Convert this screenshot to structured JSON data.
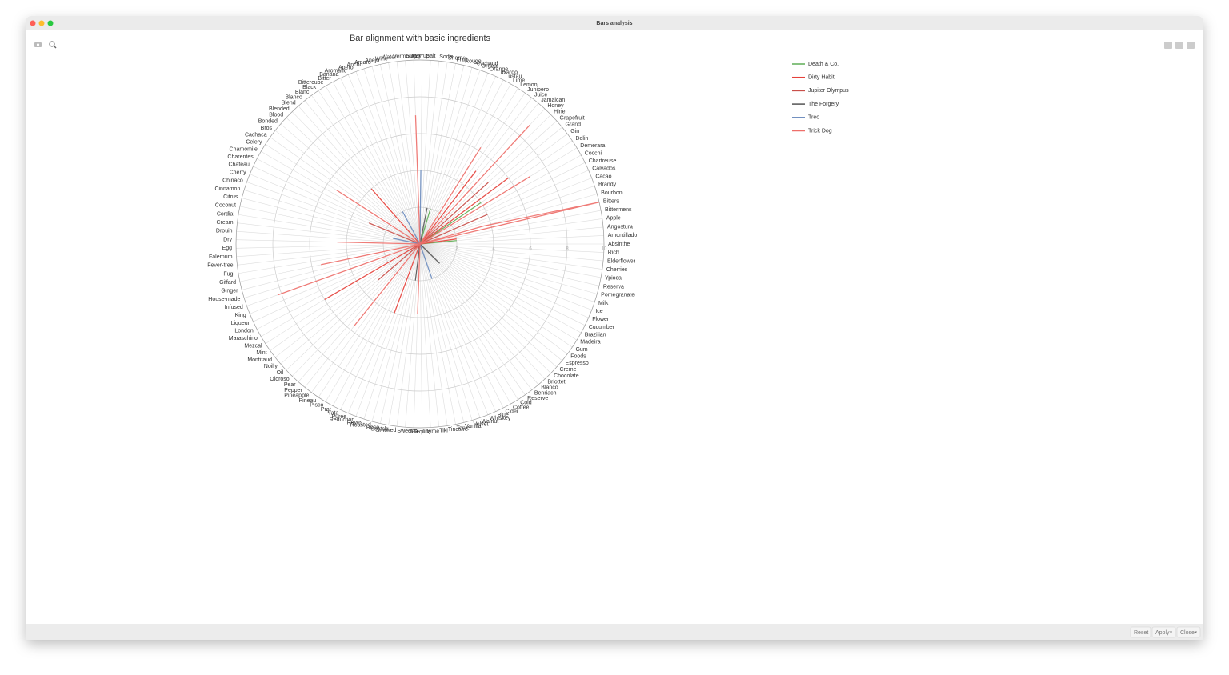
{
  "window": {
    "title": "Bars analysis",
    "buttons": [
      "Reset",
      "Apply",
      "Close"
    ]
  },
  "chart_data": {
    "type": "polar_line",
    "title": "Bar alignment with basic ingredients",
    "categories": [
      "Absinthe",
      "Amontillado",
      "Angostura",
      "Apple",
      "Bittermens",
      "Bitters",
      "Bourbon",
      "Brandy",
      "Cacao",
      "Calvados",
      "Chartreuse",
      "Cocchi",
      "Demerara",
      "Dolin",
      "Gin",
      "Grand",
      "Grapefruit",
      "Hine",
      "Honey",
      "Jamaican",
      "Juice",
      "Junipero",
      "Lemon",
      "Lime",
      "Lustau",
      "Luxardo",
      "Orange",
      "Orgeat",
      "Peychaud",
      "Rouge",
      "Fruit",
      "Sherry",
      "Soda",
      "Salt",
      "Syrup",
      "Sugar",
      "Vermouth",
      "Water",
      "Wine",
      "Anejo",
      "Amaro",
      "Ancho",
      "Aperol",
      "Aromatic",
      "Banana",
      "Bitter",
      "Bittercube",
      "Black",
      "Blanc",
      "Blanco",
      "Blend",
      "Blended",
      "Blood",
      "Bonded",
      "Bros",
      "Cachaca",
      "Celery",
      "Chamomile",
      "Charentes",
      "Chateau",
      "Cherry",
      "Chinaco",
      "Cinnamon",
      "Citrus",
      "Coconut",
      "Cordial",
      "Cream",
      "Drouin",
      "Dry",
      "Egg",
      "Falernum",
      "Fever-tree",
      "Fugi",
      "Giffard",
      "Ginger",
      "House-made",
      "Infused",
      "King",
      "Liqueur",
      "London",
      "Maraschino",
      "Mezcal",
      "Mint",
      "Montifaud",
      "Noilly",
      "Oil",
      "Oloroso",
      "Pear",
      "Pepper",
      "Pineapple",
      "Pineau",
      "Pisco",
      "Prat",
      "Prata",
      "Puree",
      "Reduction",
      "Reyes",
      "Roasted",
      "Rose",
      "Scotch",
      "Smoked",
      "Sweet",
      "Tea",
      "Tequila",
      "Thyme",
      "Tiki",
      "Tincture",
      "Tonic",
      "Vanilla",
      "Velvet",
      "Walnut",
      "Whiskey",
      "Blue",
      "Cider",
      "Coffee",
      "Cold",
      "Reserve",
      "Benriach",
      "Blanco",
      "Briottet",
      "Chocolate",
      "Creme",
      "Espresso",
      "Foods",
      "Gum",
      "Madeira",
      "Brazilian",
      "Cucumber",
      "Flower",
      "Ice",
      "Milk",
      "Pomegranate",
      "Reserva",
      "Ypioca",
      "Cherries",
      "Elderflower",
      "Rich"
    ],
    "rlim": [
      0,
      10
    ],
    "rticks": [
      0,
      2,
      4,
      6,
      8,
      10
    ],
    "grid": true,
    "legend": "right",
    "series": [
      {
        "name": "Death & Co.",
        "color": "#5fae57",
        "values": [
          0,
          0,
          2,
          0,
          0,
          0,
          0,
          0,
          0,
          0,
          0,
          0,
          0,
          4,
          0,
          0,
          0,
          0,
          0,
          0,
          0,
          0,
          0,
          0,
          0,
          0,
          0,
          0,
          2,
          0,
          0,
          0,
          0,
          0,
          0,
          0,
          0,
          0,
          0,
          0,
          0,
          0,
          0,
          0,
          0,
          0,
          0,
          0,
          0,
          0,
          0,
          0,
          0,
          0,
          0,
          0,
          0,
          0,
          0,
          0,
          0,
          0,
          0,
          0,
          0,
          0,
          0,
          0,
          0,
          0,
          0,
          0,
          0,
          0,
          0,
          0,
          0,
          0,
          0,
          0,
          0,
          0,
          0,
          0,
          0,
          0,
          0,
          0,
          0,
          0,
          0,
          0,
          0,
          0,
          0,
          0,
          0,
          0,
          0,
          0,
          0,
          0,
          0,
          0,
          0,
          0,
          0,
          0,
          0,
          0,
          0,
          0,
          0,
          0,
          0,
          0,
          0,
          0,
          0,
          0,
          0,
          0,
          0,
          0,
          0,
          0,
          0,
          0,
          0,
          0,
          0,
          0,
          0,
          0,
          0,
          0,
          0
        ]
      },
      {
        "name": "Dirty Habit",
        "color": "#e5413b",
        "values": [
          0,
          0,
          0,
          2,
          0,
          0,
          0,
          0,
          0,
          0,
          0,
          0,
          0,
          0,
          6,
          0,
          0,
          0,
          0,
          0,
          5,
          0,
          0,
          0,
          0,
          0,
          0,
          0,
          0,
          0,
          0,
          0,
          0,
          0,
          0,
          0,
          0,
          0,
          0,
          0,
          0,
          0,
          0,
          0,
          0,
          0,
          0,
          0,
          0,
          0,
          4,
          0,
          0,
          0,
          0,
          0,
          0,
          0,
          0,
          0,
          0,
          0,
          0,
          0,
          0,
          0,
          0,
          0,
          0,
          0,
          0,
          0,
          0,
          0,
          0,
          0,
          0,
          0,
          0,
          0,
          6,
          0,
          0,
          0,
          0,
          0,
          0,
          0,
          0,
          0,
          0,
          0,
          0,
          0,
          0,
          4,
          0,
          0,
          0,
          0,
          0,
          0,
          0,
          0,
          0,
          0,
          0,
          0,
          0,
          0,
          0,
          0,
          0,
          0,
          0,
          0,
          0,
          0,
          0,
          0,
          0,
          0,
          0,
          0,
          0,
          0,
          0,
          0,
          0,
          0,
          0,
          0,
          0,
          0,
          0,
          0,
          0
        ]
      },
      {
        "name": "Jupiter Olympus",
        "color": "#c9504a",
        "values": [
          0,
          0,
          0,
          0,
          0,
          0,
          0,
          0,
          0,
          4,
          0,
          0,
          0,
          0,
          0,
          0,
          5,
          0,
          0,
          0,
          0,
          0,
          0,
          0,
          0,
          0,
          0,
          0,
          0,
          0,
          0,
          0,
          0,
          0,
          0,
          0,
          0,
          0,
          0,
          0,
          0,
          0,
          0,
          0,
          0,
          0,
          0,
          0,
          0,
          0,
          0,
          0,
          0,
          0,
          0,
          0,
          0,
          0,
          0,
          0,
          3,
          0,
          0,
          0,
          0,
          0,
          0,
          0,
          0,
          0,
          0,
          0,
          0,
          0,
          0,
          0,
          0,
          0,
          0,
          0,
          0,
          0,
          0,
          0,
          3,
          0,
          0,
          0,
          0,
          0,
          0,
          0,
          0,
          0,
          0,
          0,
          0,
          0,
          0,
          0,
          0,
          0,
          0,
          0,
          0,
          0,
          0,
          0,
          0,
          0,
          0,
          0,
          0,
          0,
          0,
          0,
          0,
          0,
          0,
          0,
          0,
          0,
          0,
          0,
          0,
          0,
          0,
          0,
          0,
          0,
          0,
          0,
          0,
          0,
          0,
          0,
          0
        ]
      },
      {
        "name": "The Forgery",
        "color": "#555555",
        "values": [
          0,
          0,
          0,
          0,
          0,
          0,
          0,
          0,
          0,
          0,
          0,
          0,
          0,
          0,
          0,
          0,
          0,
          0,
          0,
          0,
          0,
          0,
          0,
          0,
          0,
          0,
          0,
          0,
          0,
          0,
          2,
          0,
          0,
          0,
          0,
          0,
          0,
          0,
          0,
          0,
          0,
          0,
          0,
          0,
          0,
          0,
          0,
          0,
          0,
          0,
          0,
          0,
          0,
          0,
          0,
          0,
          0,
          0,
          0,
          0,
          0,
          0,
          0,
          0,
          0,
          0,
          0,
          0,
          0,
          0,
          0,
          0,
          0,
          0,
          0,
          0,
          0,
          0,
          0,
          0,
          0,
          0,
          0,
          0,
          0,
          0,
          0,
          0,
          0,
          0,
          0,
          0,
          0,
          0,
          0,
          0,
          0,
          0,
          0,
          0,
          2,
          0,
          0,
          0,
          0,
          0,
          0,
          0,
          0,
          0,
          0,
          0,
          0,
          0,
          0,
          0,
          0,
          0,
          0,
          0,
          1.5,
          0,
          0,
          0,
          0,
          0,
          0,
          0,
          0,
          0,
          0,
          0,
          0,
          0,
          0,
          0,
          0
        ]
      },
      {
        "name": "Treo",
        "color": "#6a8bbd",
        "values": [
          0,
          0,
          0,
          0,
          0,
          0,
          0,
          0,
          0,
          0,
          0,
          0,
          0,
          0,
          0,
          0,
          0,
          0,
          0,
          0,
          0,
          0,
          0,
          0,
          0,
          0,
          0,
          0,
          0,
          0,
          0,
          0,
          0,
          0,
          4,
          0,
          0,
          0,
          0,
          0,
          0,
          0,
          0,
          0,
          0,
          2,
          0,
          0,
          0,
          0,
          0,
          0,
          0,
          0,
          0,
          0,
          0,
          0,
          0,
          0,
          0,
          0,
          0,
          0,
          1.5,
          0,
          0,
          0,
          0,
          0,
          0,
          0,
          0,
          0,
          0,
          0,
          0,
          0,
          0,
          0,
          0,
          0,
          0,
          0,
          0,
          0,
          0,
          0,
          0,
          0,
          0,
          0,
          0,
          0,
          0,
          0,
          0,
          0,
          0,
          0,
          0,
          0,
          0,
          0,
          0,
          0,
          0,
          0,
          0,
          0,
          2,
          0,
          0,
          0,
          0,
          0,
          0,
          0,
          0,
          0,
          0,
          0,
          0,
          0,
          0,
          0,
          0,
          0,
          0,
          0,
          0,
          0,
          0,
          0,
          0,
          0,
          0
        ]
      },
      {
        "name": "Trick Dog",
        "color": "#ee6f6a",
        "values": [
          0,
          0,
          0,
          0,
          0,
          10,
          3.6,
          0,
          0,
          0,
          0,
          0,
          7,
          0,
          0,
          0,
          0,
          0,
          8.8,
          0,
          0,
          0,
          6.2,
          0,
          0,
          0,
          0,
          0,
          0,
          0,
          0,
          0,
          0,
          0,
          0,
          7,
          0,
          0,
          0,
          0,
          0,
          0,
          0,
          0,
          0,
          0,
          0,
          0,
          0,
          0,
          0,
          0,
          0,
          0,
          0,
          0,
          5.4,
          0,
          0,
          0,
          0,
          0,
          0,
          0,
          0,
          0,
          0,
          0,
          4.5,
          0,
          0,
          0,
          0,
          5.5,
          0,
          0,
          8.2,
          0,
          0,
          0,
          0,
          0,
          0,
          0,
          0,
          0,
          0,
          0,
          5.7,
          0,
          0,
          0,
          0,
          0,
          0,
          0,
          0,
          0,
          0,
          0,
          0,
          0,
          3.8,
          0,
          0,
          0,
          0,
          0,
          0,
          0,
          0,
          0,
          0,
          0,
          0,
          0,
          0,
          0,
          0,
          0,
          0,
          0,
          0,
          0,
          0,
          0,
          0,
          0,
          0,
          0,
          0,
          0,
          0,
          0,
          0,
          0,
          0
        ]
      }
    ]
  }
}
